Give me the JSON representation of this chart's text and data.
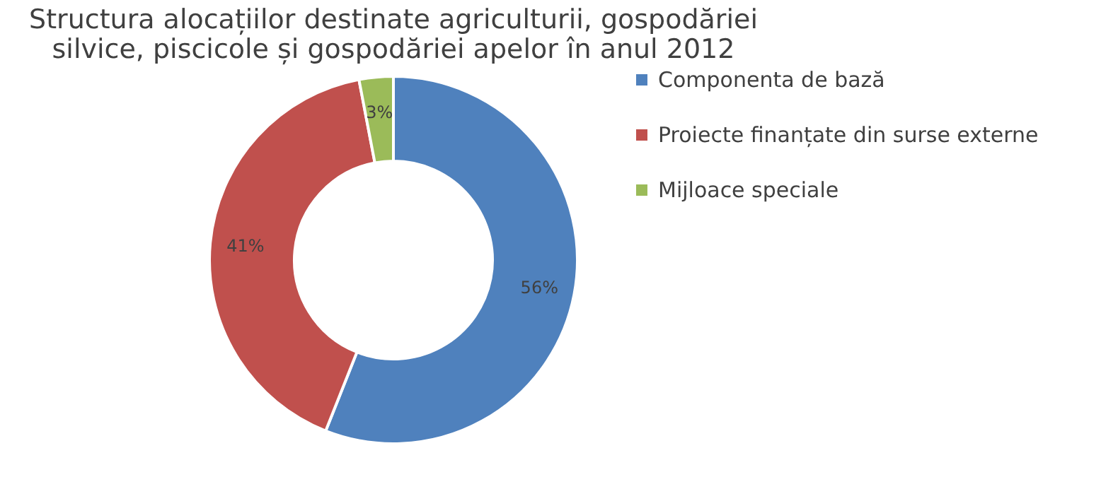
{
  "chart_data": {
    "type": "donut",
    "title": "Structura alocațiilor destinate agriculturii, gospodăriei silvice, piscicole și gospodăriei apelor în anul 2012",
    "categories": [
      "Componenta de bază",
      "Proiecte finanțate din surse externe",
      "Mijloace speciale"
    ],
    "values": [
      56,
      41,
      3
    ],
    "colors": [
      "#4f81bd",
      "#c0504d",
      "#9bbb59"
    ],
    "value_labels": [
      "56%",
      "41%",
      "3%"
    ],
    "legend": "right"
  }
}
